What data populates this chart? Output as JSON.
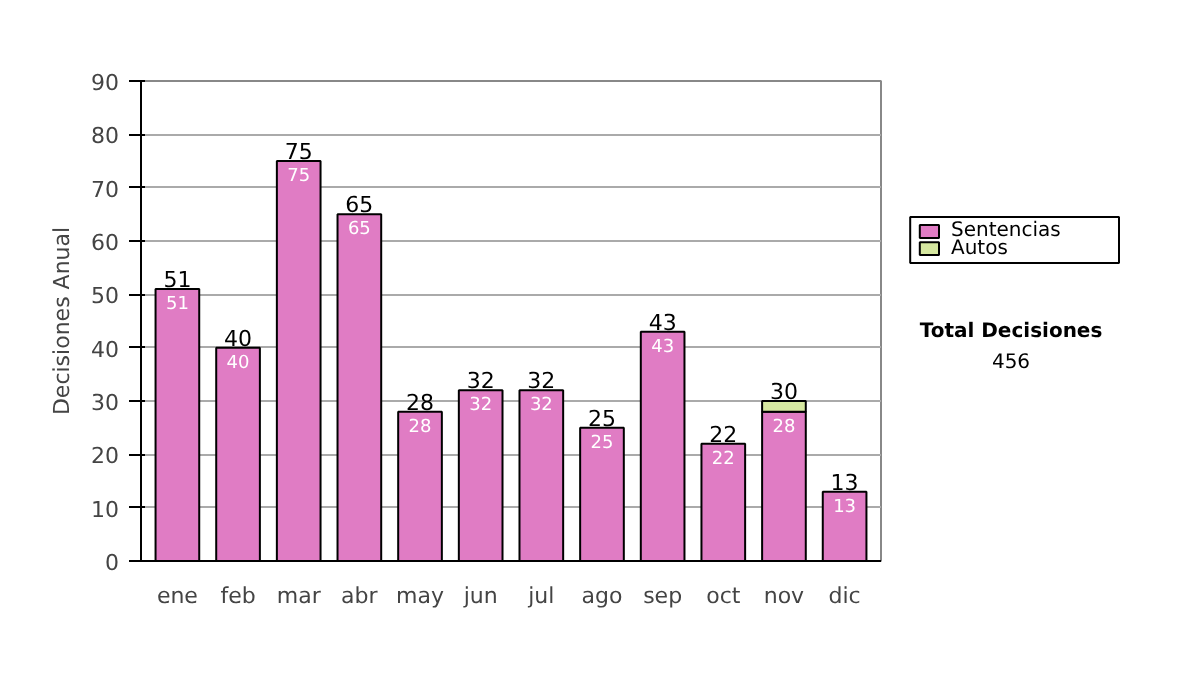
{
  "chart_data": {
    "type": "bar",
    "stacked": true,
    "ylabel": "Decisiones Anual",
    "categories": [
      "ene",
      "feb",
      "mar",
      "abr",
      "may",
      "jun",
      "jul",
      "ago",
      "sep",
      "oct",
      "nov",
      "dic"
    ],
    "series": [
      {
        "name": "Sentencias",
        "color": "#e07cc4",
        "values": [
          51,
          40,
          75,
          65,
          28,
          32,
          32,
          25,
          43,
          22,
          28,
          13
        ],
        "value_labels": [
          "51",
          "40",
          "75",
          "65",
          "28",
          "32",
          "32",
          "25",
          "43",
          "22",
          "28",
          "13"
        ]
      },
      {
        "name": "Autos",
        "color": "#d6e8a0",
        "values": [
          null,
          null,
          null,
          null,
          null,
          null,
          null,
          null,
          null,
          null,
          2,
          null
        ]
      }
    ],
    "totals": [
      "51",
      "40",
      "75",
      "65",
      "28",
      "32",
      "32",
      "25",
      "43",
      "22",
      "30",
      "13"
    ],
    "ylim": [
      0,
      90
    ],
    "yticks": [
      0,
      10,
      20,
      30,
      40,
      50,
      60,
      70,
      80,
      90
    ],
    "grid": "y",
    "legend": "right",
    "annotations": [
      "Total Decisiones",
      "456"
    ]
  }
}
